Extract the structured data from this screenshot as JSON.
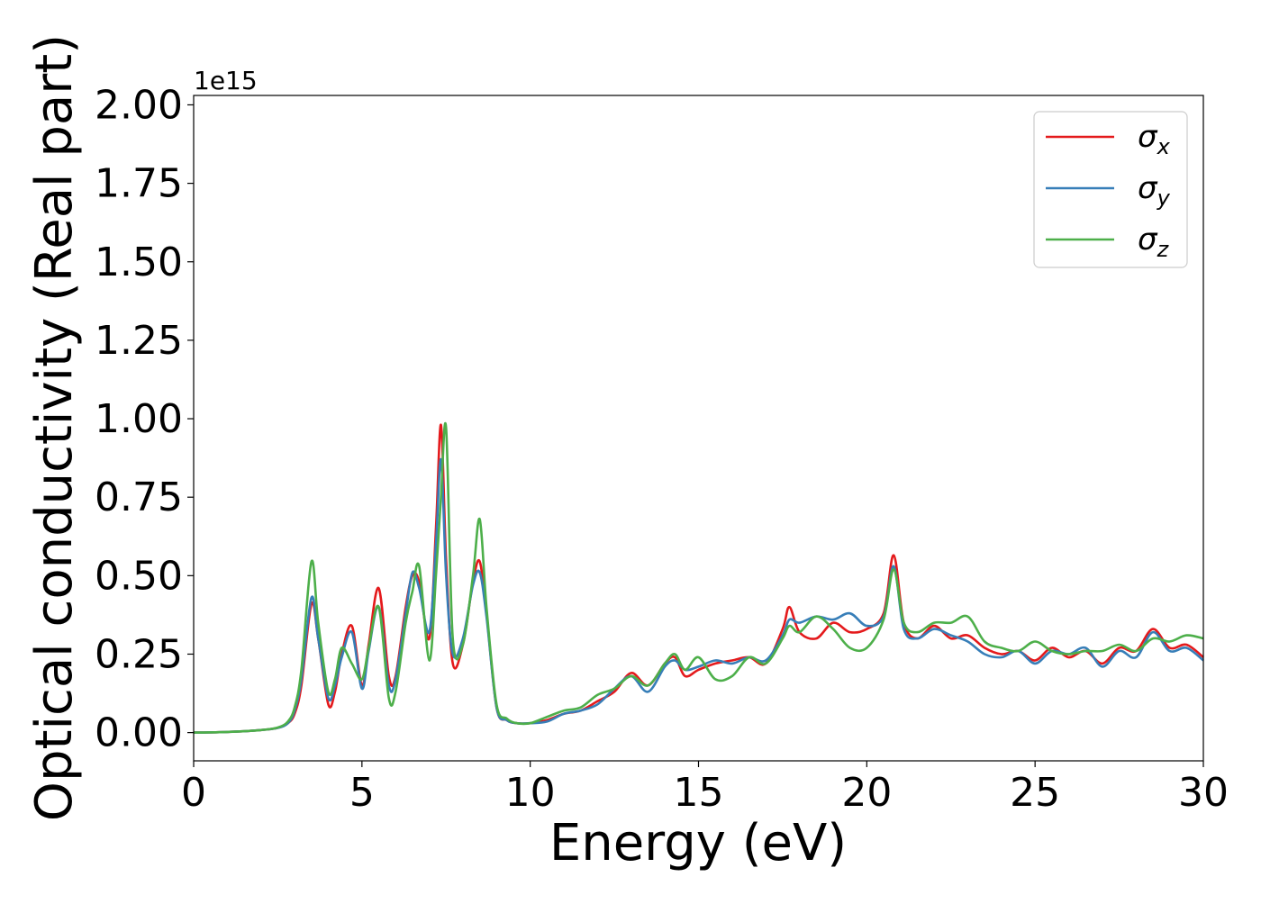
{
  "chart_data": {
    "type": "line",
    "title": "",
    "xlabel": "Energy (eV)",
    "ylabel": "Optical conductivity (Real part)",
    "y_offset_label": "1e15",
    "xlim": [
      0,
      30
    ],
    "ylim": [
      -0.09,
      2.03
    ],
    "xticks": [
      0,
      5,
      10,
      15,
      20,
      25,
      30
    ],
    "xtick_labels": [
      "0",
      "5",
      "10",
      "15",
      "20",
      "25",
      "30"
    ],
    "yticks": [
      0.0,
      0.25,
      0.5,
      0.75,
      1.0,
      1.25,
      1.5,
      1.75,
      2.0
    ],
    "ytick_labels": [
      "0.00",
      "0.25",
      "0.50",
      "0.75",
      "1.00",
      "1.25",
      "1.50",
      "1.75",
      "2.00"
    ],
    "grid": false,
    "legend_position": "top-right",
    "series": [
      {
        "name": "σx",
        "symbol": "σ",
        "subscript": "x",
        "color": "#e41a1c",
        "x": [
          0,
          1,
          2,
          2.5,
          2.8,
          3.0,
          3.2,
          3.5,
          3.7,
          4.0,
          4.2,
          4.4,
          4.7,
          5.0,
          5.2,
          5.5,
          5.8,
          6.0,
          6.3,
          6.5,
          6.7,
          7.0,
          7.2,
          7.35,
          7.5,
          7.7,
          8.0,
          8.3,
          8.5,
          8.7,
          9.0,
          9.3,
          9.6,
          10.0,
          10.5,
          11.0,
          11.5,
          12.0,
          12.5,
          13.0,
          13.5,
          14.0,
          14.3,
          14.6,
          15.0,
          15.5,
          16.0,
          16.5,
          17.0,
          17.5,
          17.7,
          18.0,
          18.5,
          19.0,
          19.5,
          20.0,
          20.5,
          20.8,
          21.1,
          21.5,
          22.0,
          22.5,
          23.0,
          23.5,
          24.0,
          24.5,
          25.0,
          25.5,
          26.0,
          26.5,
          27.0,
          27.5,
          28.0,
          28.5,
          29.0,
          29.5,
          30.0
        ],
        "y": [
          0.0,
          0.002,
          0.008,
          0.015,
          0.03,
          0.06,
          0.15,
          0.41,
          0.3,
          0.09,
          0.13,
          0.25,
          0.34,
          0.15,
          0.28,
          0.46,
          0.18,
          0.18,
          0.4,
          0.5,
          0.48,
          0.3,
          0.65,
          0.98,
          0.55,
          0.22,
          0.28,
          0.48,
          0.545,
          0.38,
          0.08,
          0.04,
          0.03,
          0.03,
          0.04,
          0.06,
          0.07,
          0.1,
          0.13,
          0.19,
          0.15,
          0.22,
          0.24,
          0.18,
          0.2,
          0.22,
          0.23,
          0.24,
          0.22,
          0.33,
          0.4,
          0.32,
          0.3,
          0.35,
          0.32,
          0.33,
          0.38,
          0.565,
          0.35,
          0.3,
          0.34,
          0.3,
          0.31,
          0.27,
          0.25,
          0.26,
          0.23,
          0.27,
          0.24,
          0.26,
          0.22,
          0.27,
          0.26,
          0.33,
          0.27,
          0.28,
          0.24
        ]
      },
      {
        "name": "σy",
        "symbol": "σ",
        "subscript": "y",
        "color": "#377eb8",
        "x": [
          0,
          1,
          2,
          2.5,
          2.8,
          3.0,
          3.2,
          3.5,
          3.7,
          4.0,
          4.2,
          4.4,
          4.7,
          5.0,
          5.2,
          5.5,
          5.8,
          6.0,
          6.3,
          6.5,
          6.7,
          7.0,
          7.2,
          7.35,
          7.5,
          7.7,
          8.0,
          8.3,
          8.5,
          8.7,
          9.0,
          9.3,
          9.6,
          10.0,
          10.5,
          11.0,
          11.5,
          12.0,
          12.5,
          13.0,
          13.5,
          14.0,
          14.3,
          14.6,
          15.0,
          15.5,
          16.0,
          16.5,
          17.0,
          17.5,
          17.7,
          18.0,
          18.5,
          19.0,
          19.5,
          20.0,
          20.5,
          20.8,
          21.1,
          21.5,
          22.0,
          22.5,
          23.0,
          23.5,
          24.0,
          24.5,
          25.0,
          25.5,
          26.0,
          26.5,
          27.0,
          27.5,
          28.0,
          28.5,
          29.0,
          29.5,
          30.0
        ],
        "y": [
          0.0,
          0.002,
          0.008,
          0.015,
          0.03,
          0.07,
          0.17,
          0.43,
          0.3,
          0.11,
          0.15,
          0.24,
          0.32,
          0.14,
          0.26,
          0.4,
          0.15,
          0.17,
          0.38,
          0.51,
          0.46,
          0.32,
          0.6,
          0.87,
          0.5,
          0.25,
          0.3,
          0.47,
          0.51,
          0.37,
          0.08,
          0.04,
          0.03,
          0.03,
          0.035,
          0.06,
          0.07,
          0.09,
          0.14,
          0.18,
          0.13,
          0.21,
          0.23,
          0.2,
          0.21,
          0.23,
          0.22,
          0.24,
          0.23,
          0.31,
          0.36,
          0.35,
          0.37,
          0.36,
          0.38,
          0.34,
          0.37,
          0.53,
          0.33,
          0.3,
          0.33,
          0.31,
          0.29,
          0.25,
          0.24,
          0.26,
          0.22,
          0.26,
          0.25,
          0.27,
          0.21,
          0.26,
          0.24,
          0.32,
          0.26,
          0.27,
          0.23
        ]
      },
      {
        "name": "σz",
        "symbol": "σ",
        "subscript": "z",
        "color": "#4daf4a",
        "x": [
          0,
          1,
          2,
          2.5,
          2.8,
          3.0,
          3.2,
          3.5,
          3.7,
          4.0,
          4.2,
          4.4,
          4.7,
          5.0,
          5.2,
          5.5,
          5.8,
          6.0,
          6.3,
          6.5,
          6.7,
          7.0,
          7.2,
          7.35,
          7.5,
          7.7,
          8.0,
          8.3,
          8.5,
          8.7,
          9.0,
          9.3,
          9.6,
          10.0,
          10.5,
          11.0,
          11.5,
          12.0,
          12.5,
          13.0,
          13.5,
          14.0,
          14.3,
          14.6,
          15.0,
          15.5,
          16.0,
          16.5,
          17.0,
          17.5,
          17.7,
          18.0,
          18.5,
          19.0,
          19.5,
          20.0,
          20.5,
          20.8,
          21.1,
          21.5,
          22.0,
          22.5,
          23.0,
          23.5,
          24.0,
          24.5,
          25.0,
          25.5,
          26.0,
          26.5,
          27.0,
          27.5,
          28.0,
          28.5,
          29.0,
          29.5,
          30.0
        ],
        "y": [
          0.0,
          0.002,
          0.008,
          0.016,
          0.035,
          0.08,
          0.2,
          0.545,
          0.35,
          0.13,
          0.17,
          0.27,
          0.22,
          0.17,
          0.27,
          0.4,
          0.11,
          0.13,
          0.35,
          0.45,
          0.53,
          0.23,
          0.5,
          0.75,
          0.97,
          0.3,
          0.28,
          0.5,
          0.68,
          0.4,
          0.09,
          0.045,
          0.03,
          0.03,
          0.05,
          0.07,
          0.08,
          0.12,
          0.14,
          0.18,
          0.15,
          0.22,
          0.25,
          0.2,
          0.24,
          0.17,
          0.18,
          0.24,
          0.22,
          0.3,
          0.34,
          0.32,
          0.37,
          0.33,
          0.27,
          0.27,
          0.36,
          0.52,
          0.35,
          0.32,
          0.35,
          0.35,
          0.37,
          0.29,
          0.27,
          0.26,
          0.29,
          0.26,
          0.25,
          0.26,
          0.26,
          0.28,
          0.26,
          0.3,
          0.29,
          0.31,
          0.3
        ]
      }
    ]
  }
}
